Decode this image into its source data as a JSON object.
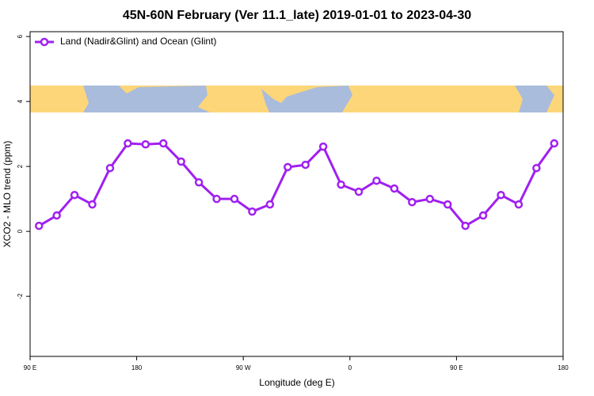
{
  "chart_data": {
    "type": "line",
    "title": "45N-60N February (Ver 11.1_late)   2019-01-01 to 2023-04-30",
    "x_label": "Longitude (deg E)",
    "y_label": "XCO2 - MLO trend (ppm)",
    "x": [
      97.5,
      112.5,
      127.5,
      142.5,
      157.5,
      172.5,
      187.5,
      202.5,
      217.5,
      232.5,
      247.5,
      262.5,
      277.5,
      292.5,
      307.5,
      322.5,
      337.5,
      352.5,
      367.5,
      382.5,
      397.5,
      412.5,
      427.5,
      442.5,
      457.5,
      472.5,
      487.5,
      502.5,
      517.5,
      532.5
    ],
    "series": [
      {
        "name": "Land (Nadir&Glint) and Ocean (Glint)",
        "color": "#a020f0",
        "values": [
          0.17,
          0.49,
          1.12,
          0.83,
          1.95,
          2.71,
          2.68,
          2.71,
          2.15,
          1.51,
          1.0,
          1.0,
          0.61,
          0.83,
          1.98,
          2.05,
          2.61,
          1.44,
          1.22,
          1.56,
          1.32,
          0.9,
          1.0,
          0.83,
          0.17,
          0.49,
          1.12,
          0.83,
          1.95,
          2.71
        ]
      }
    ],
    "xlim": [
      90,
      540
    ],
    "xticks": [
      {
        "value": 90,
        "label": "90 E"
      },
      {
        "value": 180,
        "label": "180"
      },
      {
        "value": 270,
        "label": "90 W"
      },
      {
        "value": 360,
        "label": "0"
      },
      {
        "value": 450,
        "label": "90 E"
      },
      {
        "value": 540,
        "label": "180"
      }
    ],
    "ylim": [
      -3.85,
      6.15
    ],
    "yticks": [
      -2,
      0,
      2,
      4,
      6
    ],
    "legend": "top-left"
  }
}
